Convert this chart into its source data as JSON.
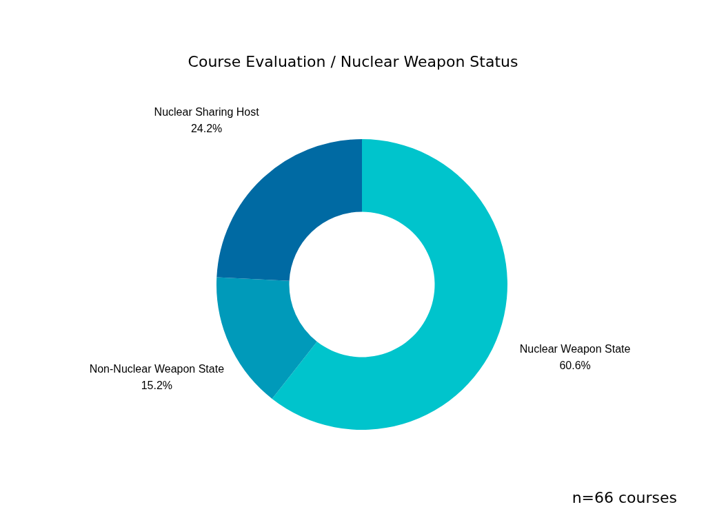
{
  "chart_data": {
    "type": "donut",
    "title": "Course Evaluation / Nuclear Weapon Status",
    "categories": [
      "Nuclear Weapon State",
      "Non-Nuclear Weapon State",
      "Nuclear Sharing Host"
    ],
    "values": [
      60.6,
      15.2,
      24.2
    ],
    "colors": [
      "#00c4cc",
      "#009aba",
      "#006aa3"
    ],
    "value_labels": [
      "60.6%",
      "15.2%",
      "24.2%"
    ],
    "legend": false,
    "annotations": [
      "n=66 courses"
    ]
  }
}
